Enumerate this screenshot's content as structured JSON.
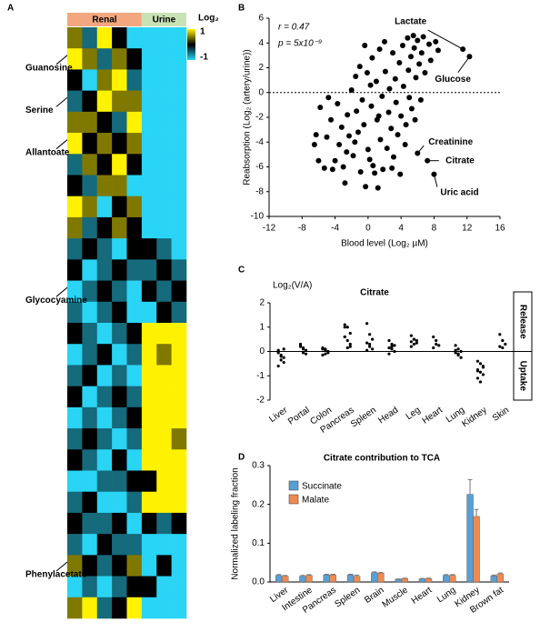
{
  "chart_data": [
    {
      "type": "heatmap",
      "panel": "A",
      "groups": [
        {
          "name": "Renal",
          "color": "#f2a77f",
          "columns": 5
        },
        {
          "name": "Urine",
          "color": "#c8e2b5",
          "columns": 3
        }
      ],
      "vlim": [
        -1,
        1
      ],
      "colorbar": {
        "label": "Log₂",
        "ticks": [
          1,
          -1
        ],
        "colors": [
          "#29d4f5",
          "#000000",
          "#fff200"
        ]
      },
      "row_labels": [
        null,
        "Guanosine",
        null,
        "Serine",
        null,
        "Allantoate",
        null,
        null,
        null,
        null,
        null,
        null,
        "Glycocyamine",
        null,
        null,
        null,
        null,
        null,
        null,
        null,
        null,
        null,
        null,
        null,
        null,
        "Phenylacetate",
        null,
        null
      ],
      "values": [
        [
          0.5,
          -0.5,
          1,
          0,
          -1,
          -1,
          -1,
          -1
        ],
        [
          1,
          0.5,
          -0.5,
          0.5,
          0,
          -1,
          -1,
          -1
        ],
        [
          0,
          -1,
          0.5,
          1,
          -0.5,
          -1,
          -1,
          -1
        ],
        [
          -0.5,
          0,
          1,
          0.5,
          0.5,
          -1,
          -1,
          -1
        ],
        [
          0.5,
          0.5,
          0,
          -0.5,
          1,
          -1,
          -1,
          -1
        ],
        [
          1,
          0,
          0.5,
          0,
          0.5,
          -1,
          -1,
          -1
        ],
        [
          -0.5,
          0.5,
          0,
          1,
          0,
          -1,
          -1,
          -1
        ],
        [
          0,
          -0.5,
          0.5,
          0.5,
          -1,
          -1,
          -1,
          -1
        ],
        [
          1,
          0.5,
          -1,
          0,
          0.5,
          -1,
          -1,
          -1
        ],
        [
          0.5,
          -0.5,
          0,
          0.5,
          0,
          -1,
          -1,
          -1
        ],
        [
          -0.5,
          0,
          -0.5,
          -1,
          0,
          0,
          -0.5,
          -1
        ],
        [
          0,
          -1,
          -0.5,
          0,
          -0.5,
          -0.5,
          0,
          -0.5
        ],
        [
          -1,
          -0.5,
          0,
          -0.5,
          -1,
          0,
          -0.5,
          0
        ],
        [
          -0.5,
          -1,
          -0.5,
          0,
          -1,
          -1,
          0,
          -0.5
        ],
        [
          0,
          -0.5,
          -1,
          -0.5,
          0,
          1,
          1,
          1
        ],
        [
          -1,
          -0.5,
          0,
          -1,
          -0.5,
          1,
          0.5,
          1
        ],
        [
          -0.5,
          0,
          -1,
          -0.5,
          -1,
          1,
          1,
          1
        ],
        [
          0,
          -1,
          -0.5,
          0,
          -0.5,
          1,
          1,
          1
        ],
        [
          -1,
          -0.5,
          -1,
          -0.5,
          0,
          1,
          1,
          1
        ],
        [
          -0.5,
          0,
          -0.5,
          -1,
          -0.5,
          1,
          1,
          0.5
        ],
        [
          0,
          -0.5,
          -1,
          0,
          -1,
          1,
          1,
          1
        ],
        [
          -1,
          -1,
          -0.5,
          -0.5,
          0,
          0,
          1,
          1
        ],
        [
          -0.5,
          0,
          -1,
          -1,
          -0.5,
          1,
          1,
          1
        ],
        [
          0,
          -0.5,
          -0.5,
          0,
          -1,
          0,
          -0.5,
          0
        ],
        [
          -0.5,
          -1,
          0,
          -0.5,
          -0.5,
          -1,
          -1,
          -1
        ],
        [
          0.5,
          0,
          -0.5,
          0,
          0.5,
          -1,
          0,
          -1
        ],
        [
          -1,
          -0.5,
          -1,
          -0.5,
          0,
          0,
          -1,
          -1
        ],
        [
          0.5,
          1,
          -0.5,
          0,
          1,
          -1,
          -1,
          -1
        ]
      ]
    },
    {
      "type": "scatter",
      "panel": "B",
      "stat_r": "r = 0.47",
      "stat_p": "p = 5x10⁻⁹",
      "x_label": "Blood level (Log₂ µM)",
      "y_label": "Reabsorption (Log₂ (artery/urine))",
      "xlim": [
        -12,
        16
      ],
      "xticks": [
        -12,
        -8,
        -4,
        0,
        4,
        8,
        12,
        16
      ],
      "ylim": [
        -10,
        6
      ],
      "yticks": [
        -10,
        -8,
        -6,
        -4,
        -2,
        0,
        2,
        4,
        6
      ],
      "reference_line": 0,
      "color": "#000000",
      "series": [
        {
          "x": [
            -6.5,
            -6.3,
            -6,
            -5.8,
            -5.3,
            -5,
            -4.5,
            -4.3,
            -4,
            -3.7,
            -3.5,
            -3.2,
            -3,
            -2.8,
            -2.5,
            -2.3,
            -2,
            -1.8,
            -1.5,
            -1.4,
            -1.2,
            -1,
            -0.9,
            -0.7,
            -0.5,
            -0.3,
            -0.1,
            0,
            0.2,
            0.4,
            0.5,
            0.6,
            0.8,
            1,
            1.1,
            1.2,
            1.4,
            1.5,
            1.7,
            1.8,
            2,
            2.1,
            2.3,
            2.5,
            2.6,
            2.8,
            3,
            3.1,
            3.3,
            3.4,
            3.6,
            3.8,
            3.9,
            4,
            4.2,
            4.3,
            4.5,
            4.6,
            4.8,
            4.9,
            5,
            5.2,
            5.3,
            5.5,
            5.6,
            5.8,
            6,
            6.2,
            6.4,
            6.5,
            6.7,
            6.9,
            7.4,
            7.6,
            8.2,
            8.5,
            -2.6,
            -1.6,
            0.3,
            1.3,
            2.9,
            -4.8,
            5.7,
            -0.4
          ],
          "y": [
            -4.2,
            -3.4,
            -5.5,
            -1.2,
            -6.1,
            -3.6,
            -2.2,
            -6.2,
            -5.5,
            -0.9,
            -4.2,
            -2.8,
            -6,
            -7.3,
            -1.8,
            -3.5,
            0.2,
            -5.1,
            1.3,
            -1.5,
            -3.2,
            2.1,
            -6.4,
            -0.6,
            -2.6,
            -7.6,
            1.6,
            -4.6,
            -5.4,
            -1.1,
            2.8,
            -5.9,
            -6.5,
            0.9,
            -2.2,
            -7.7,
            3.5,
            -3.8,
            -0.3,
            -6.2,
            4.1,
            1.7,
            -4.5,
            -1.6,
            0.3,
            -2.9,
            3.2,
            -5.2,
            1.1,
            -0.8,
            -3.4,
            2.4,
            -6.6,
            -1.9,
            3.8,
            0.5,
            -4.2,
            -2.6,
            4.4,
            1.8,
            -0.4,
            2.9,
            -1.3,
            4.6,
            3.6,
            1.2,
            4.2,
            2.3,
            -0.6,
            3.2,
            4.5,
            1.6,
            3.9,
            2.6,
            4.1,
            3.4,
            -4.8,
            -4,
            0.6,
            -1.9,
            -6.1,
            -0.4,
            -2.2,
            3.8
          ]
        },
        {
          "x": [
            6,
            7.2,
            8,
            11.5,
            12.3
          ],
          "y": [
            -4.9,
            -5.5,
            -6.6,
            3.5,
            2.9
          ],
          "labels": [
            "Creatinine",
            "Citrate",
            "Uric acid",
            "Lactate",
            "Glucose"
          ]
        }
      ]
    },
    {
      "type": "strip",
      "panel": "C",
      "title": "Citrate",
      "y_label": "Log₂(V/A)",
      "release_label": "Release",
      "uptake_label": "Uptake",
      "ylim": [
        -2,
        2
      ],
      "yticks": [
        -2,
        -1,
        0,
        1,
        2
      ],
      "color": "#000000",
      "categories": [
        "Liver",
        "Portal",
        "Colon",
        "Pancreas",
        "Spleen",
        "Head",
        "Leg",
        "Heart",
        "Lung",
        "Kidney",
        "Skin"
      ],
      "values": [
        [
          -0.05,
          -0.15,
          -0.25,
          0.05,
          -0.35,
          -0.45,
          -0.6,
          -0.2,
          0.1
        ],
        [
          0.25,
          0.15,
          0.05,
          0.3,
          0.1,
          -0.1,
          0.2,
          -0.05
        ],
        [
          0.1,
          0.05,
          -0.05,
          0.15,
          -0.1,
          0,
          -0.15,
          0.1
        ],
        [
          1.1,
          1,
          0.75,
          0.6,
          0.45,
          0.3,
          1,
          0.15,
          0.2,
          0.6
        ],
        [
          1.15,
          0.7,
          0.5,
          0.35,
          0.2,
          0.1,
          0.05,
          0.3
        ],
        [
          0.45,
          0.3,
          0.25,
          0.15,
          0.1,
          0,
          -0.1,
          0.2
        ],
        [
          0.65,
          0.5,
          0.45,
          0.4,
          0.3,
          0.35,
          0.2,
          0.5
        ],
        [
          0.6,
          0.45,
          0.25,
          0.15,
          0.3
        ],
        [
          0.25,
          0.1,
          0,
          -0.05,
          -0.15,
          -0.25,
          0.05,
          -0.1
        ],
        [
          -0.4,
          -0.5,
          -0.65,
          -0.75,
          -0.85,
          -0.95,
          -1.1,
          -1.25,
          -0.6,
          -0.8
        ],
        [
          0.7,
          0.45,
          0.3,
          0.2,
          0.15
        ]
      ]
    },
    {
      "type": "bar",
      "panel": "D",
      "title": "Citrate contribution to TCA",
      "y_label": "Normalized labeling fraction",
      "ylim": [
        0,
        0.3
      ],
      "yticks": [
        {
          "value": 0,
          "label": "0.0"
        },
        0.1,
        0.2,
        0.3
      ],
      "categories": [
        "Liver",
        "Intestine",
        "Pancreas",
        "Spleen",
        "Brain",
        "Muscle",
        "Heart",
        "Lung",
        "Kidney",
        "Brown fat"
      ],
      "series": [
        {
          "name": "Succinate",
          "color": "#5a9fd4",
          "values": [
            0.017,
            0.015,
            0.018,
            0.018,
            0.024,
            0.007,
            0.008,
            0.017,
            0.226,
            0.016
          ],
          "errors": [
            0.002,
            0.002,
            0.002,
            0.002,
            0.002,
            0.001,
            0.001,
            0.002,
            0.038,
            0.002
          ]
        },
        {
          "name": "Malate",
          "color": "#ef8a52",
          "values": [
            0.015,
            0.017,
            0.018,
            0.015,
            0.023,
            0.009,
            0.009,
            0.017,
            0.169,
            0.021
          ],
          "errors": [
            0.002,
            0.002,
            0.002,
            0.003,
            0.002,
            0.001,
            0.001,
            0.002,
            0.018,
            0.002
          ]
        }
      ]
    }
  ]
}
